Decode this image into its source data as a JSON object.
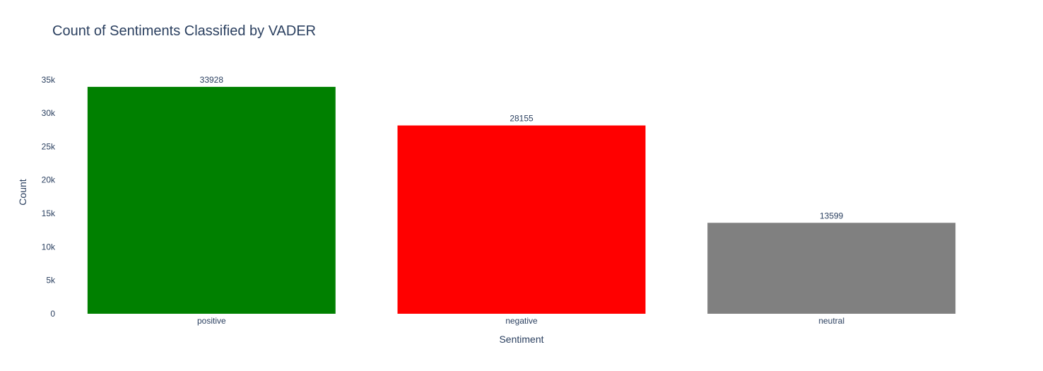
{
  "chart_data": {
    "type": "bar",
    "title": "Count of Sentiments Classified by VADER",
    "xlabel": "Sentiment",
    "ylabel": "Count",
    "categories": [
      "positive",
      "negative",
      "neutral"
    ],
    "values": [
      33928,
      28155,
      13599
    ],
    "data_labels": [
      "33928",
      "28155",
      "13599"
    ],
    "colors": [
      "#008000",
      "#ff0000",
      "#808080"
    ],
    "ylim": [
      0,
      35714
    ],
    "yticks": [
      0,
      5000,
      10000,
      15000,
      20000,
      25000,
      30000,
      35000
    ],
    "ytick_labels": [
      "0",
      "5k",
      "10k",
      "15k",
      "20k",
      "25k",
      "30k",
      "35k"
    ],
    "grid": false,
    "legend": "none"
  }
}
